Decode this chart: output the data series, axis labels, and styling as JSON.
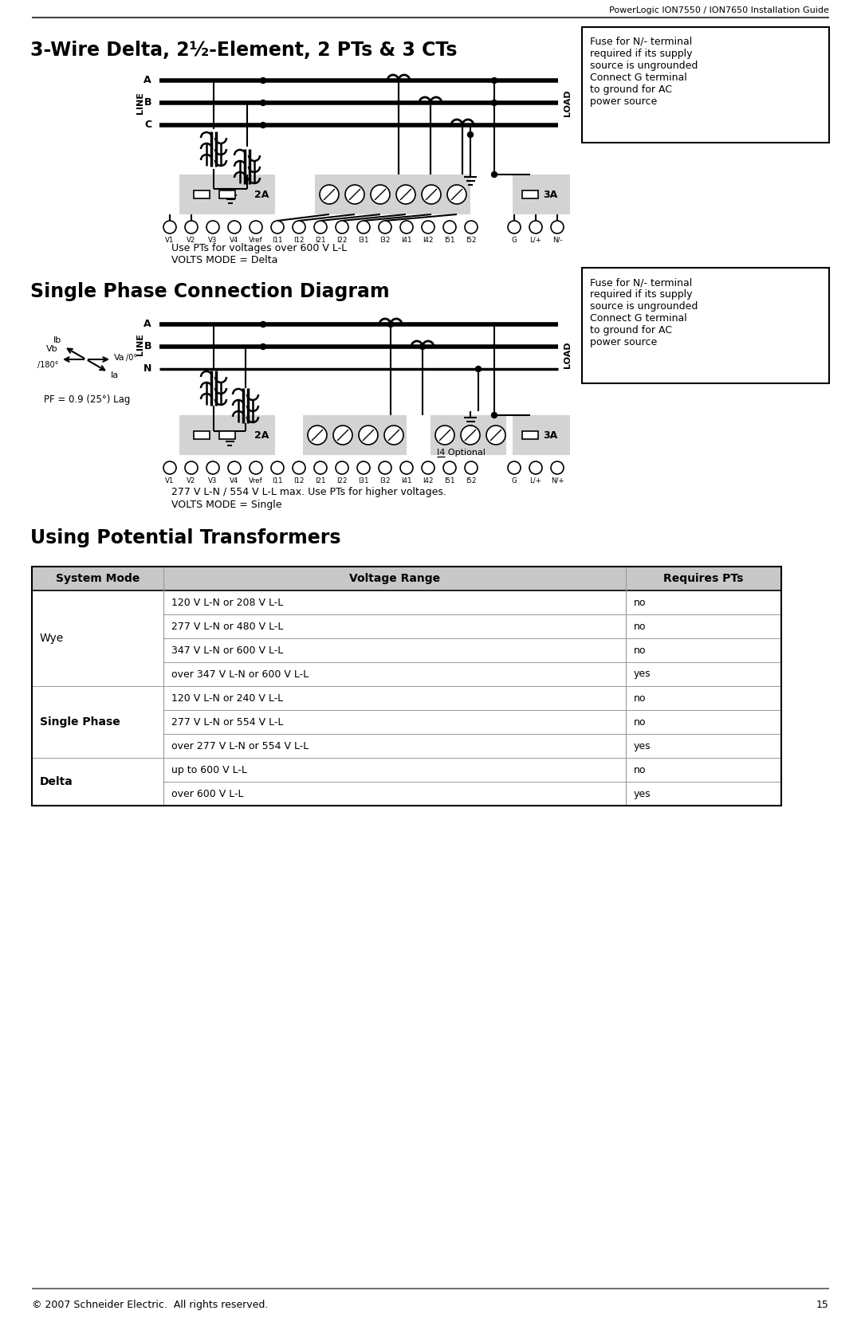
{
  "page_title": "PowerLogic ION7550 / ION7650 Installation Guide",
  "page_number": "15",
  "footer": "© 2007 Schneider Electric.  All rights reserved.",
  "section1_title": "3-Wire Delta, 2½-Element, 2 PTs & 3 CTs",
  "section2_title": "Single Phase Connection Diagram",
  "section3_title": "Using Potential Transformers",
  "note_box1": "Fuse for N/- terminal\nrequired if its supply\nsource is ungrounded\nConnect G terminal\nto ground for AC\npower source",
  "note_box2": "Fuse for N/- terminal\nrequired if its supply\nsource is ungrounded\nConnect G terminal\nto ground for AC\npower source",
  "caption1_line1": "Use PTs for voltages over 600 V L-L",
  "caption1_line2": "VOLTS MODE = Delta",
  "caption2_line1": "277 V L-N / 554 V L-L max. Use PTs for higher voltages.",
  "caption2_line2": "VOLTS MODE = Single",
  "pf_label": "PF = 0.9 (25°) Lag",
  "i4_label": "I4 Optional",
  "table_headers": [
    "System Mode",
    "Voltage Range",
    "Requires PTs"
  ],
  "table_rows": [
    [
      "Wye",
      "120 V L-N or 208 V L-L",
      "no"
    ],
    [
      "",
      "277 V L-N or 480 V L-L",
      "no"
    ],
    [
      "",
      "347 V L-N or 600 V L-L",
      "no"
    ],
    [
      "",
      "over 347 V L-N or 600 V L-L",
      "yes"
    ],
    [
      "Single Phase",
      "120 V L-N or 240 V L-L",
      "no"
    ],
    [
      "",
      "277 V L-N or 554 V L-L",
      "no"
    ],
    [
      "",
      "over 277 V L-N or 554 V L-L",
      "yes"
    ],
    [
      "Delta",
      "up to 600 V L-L",
      "no"
    ],
    [
      "",
      "over 600 V L-L",
      "yes"
    ]
  ],
  "bg_color": "#ffffff",
  "line_color": "#000000",
  "gray_fill": "#d3d3d3",
  "table_header_fill": "#c8c8c8"
}
